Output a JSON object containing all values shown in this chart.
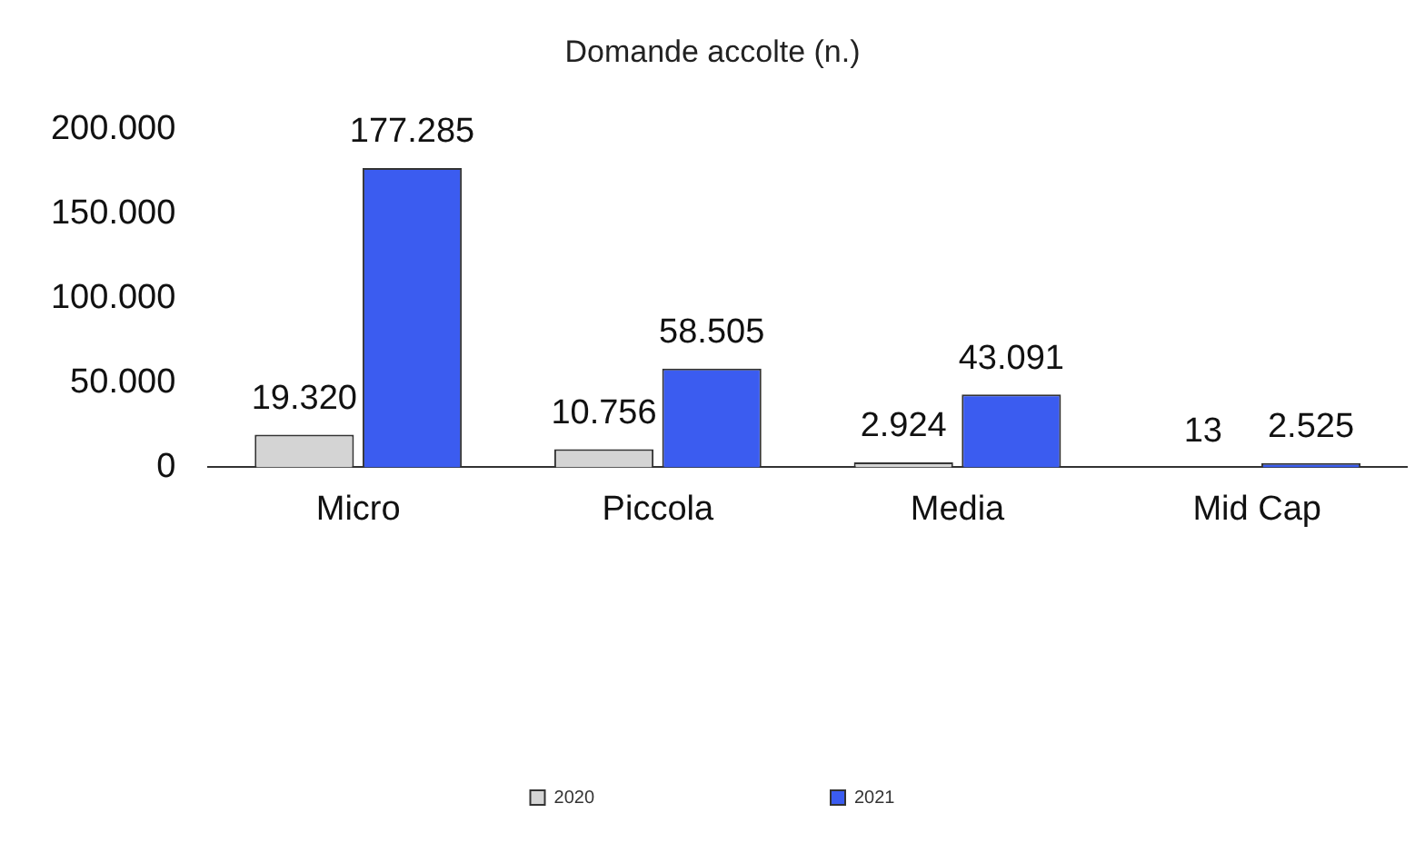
{
  "chart_data": {
    "type": "bar",
    "title": "Domande accolte (n.)",
    "categories": [
      "Micro",
      "Piccola",
      "Media",
      "Mid Cap"
    ],
    "series": [
      {
        "name": "2020",
        "color": "#d4d4d4",
        "values": [
          19320,
          10756,
          2924,
          13
        ],
        "value_labels": [
          "19.320",
          "10.756",
          "2.924",
          "13"
        ]
      },
      {
        "name": "2021",
        "color": "#3b5cf0",
        "values": [
          177285,
          58505,
          43091,
          2525
        ],
        "value_labels": [
          "177.285",
          "58.505",
          "43.091",
          "2.525"
        ]
      }
    ],
    "ylim": [
      0,
      200000
    ],
    "yticks": [
      {
        "value": 0,
        "label": "0"
      },
      {
        "value": 50000,
        "label": "50.000"
      },
      {
        "value": 100000,
        "label": "100.000"
      },
      {
        "value": 150000,
        "label": "150.000"
      },
      {
        "value": 200000,
        "label": "200.000"
      }
    ],
    "grid": false,
    "legend": "bottom"
  }
}
